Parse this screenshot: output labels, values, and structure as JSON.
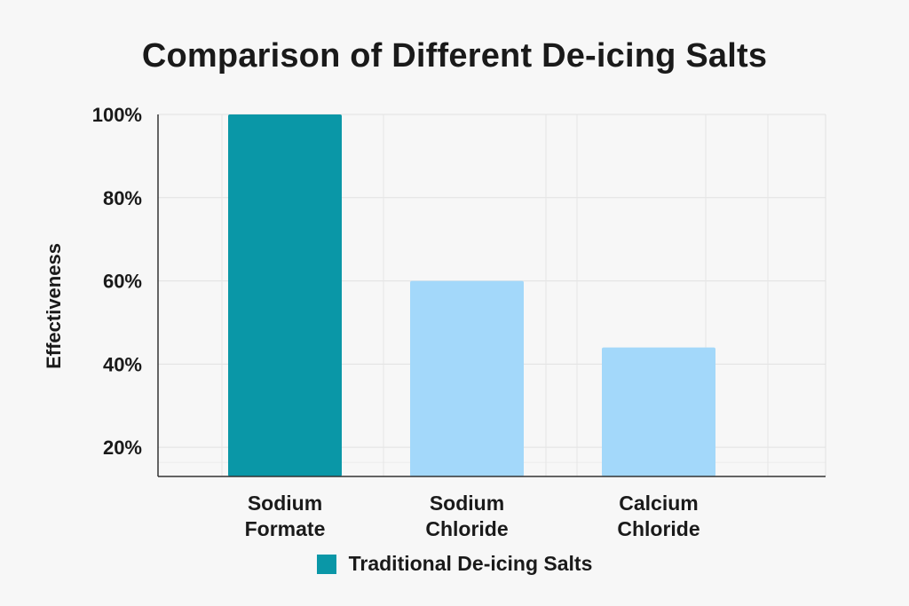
{
  "chart_data": {
    "type": "bar",
    "title": "Comparison of Different De-icing Salts",
    "xlabel": "",
    "ylabel": "Effectiveness",
    "categories": [
      [
        "Sodium",
        "Formate"
      ],
      [
        "Sodium",
        "Chloride"
      ],
      [
        "Calcium",
        "Chloride"
      ]
    ],
    "values": [
      100,
      60,
      44
    ],
    "bar_colors": [
      "#0a97a7",
      "#a3d8fa",
      "#a3d8fa"
    ],
    "ylim": [
      13,
      100
    ],
    "yticks": [
      20,
      40,
      60,
      80,
      100
    ],
    "ytick_labels": [
      "20%",
      "40%",
      "60%",
      "80%",
      "100%"
    ],
    "grid": true,
    "legend": {
      "placement": "bottom",
      "entries": [
        {
          "label": "Traditional De-icing Salts",
          "color": "#0a97a7"
        }
      ]
    }
  }
}
